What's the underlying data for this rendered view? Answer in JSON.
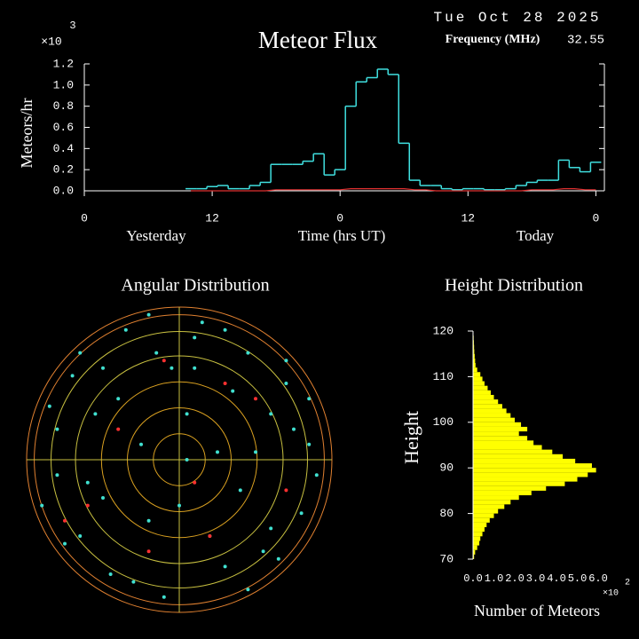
{
  "chart_data": [
    {
      "type": "step",
      "title": "Meteor Flux",
      "date": "Tue Oct 28 2025",
      "frequency_label": "Frequency (MHz)",
      "frequency": 32.55,
      "y_label": "Meteors/hr",
      "y_multiplier": "×10",
      "y_exponent": "3",
      "x_label": "Time (hrs UT)",
      "x_sublabels": [
        "Yesterday",
        "Today"
      ],
      "x": [
        9.5,
        10.5,
        11.5,
        12.5,
        13.5,
        14.5,
        15.5,
        16.5,
        17.5,
        18.5,
        19.5,
        20.5,
        21.5,
        22.5,
        23.5,
        24.5,
        25.5,
        26.5,
        27.5,
        28.5,
        29.5,
        30.5,
        31.5,
        32.5,
        33.5,
        34.5,
        35.5,
        36.5,
        37.5,
        38.5,
        39.5,
        40.5,
        41.5,
        42.5,
        43.5,
        44.5,
        45.5,
        46.5,
        47.5
      ],
      "series": [
        {
          "color": "#40e0e0",
          "values": [
            0.02,
            0.02,
            0.04,
            0.05,
            0.02,
            0.02,
            0.05,
            0.08,
            0.25,
            0.25,
            0.25,
            0.28,
            0.35,
            0.15,
            0.2,
            0.8,
            1.03,
            1.07,
            1.15,
            1.1,
            0.45,
            0.1,
            0.05,
            0.05,
            0.02,
            0.01,
            0.02,
            0.02,
            0.01,
            0.01,
            0.02,
            0.05,
            0.08,
            0.1,
            0.1,
            0.29,
            0.22,
            0.18,
            0.27
          ]
        },
        {
          "color": "#e03030",
          "values": [
            0,
            0,
            0,
            0,
            0,
            0,
            0,
            0,
            0.01,
            0.01,
            0.01,
            0.01,
            0.01,
            0.01,
            0.01,
            0.02,
            0.02,
            0.02,
            0.02,
            0.02,
            0.02,
            0.01,
            0.01,
            0,
            0,
            0,
            0,
            0,
            0,
            0,
            0,
            0,
            0.01,
            0.01,
            0.01,
            0.02,
            0.02,
            0.01,
            0.01
          ]
        }
      ],
      "xlim": [
        0,
        48.8
      ],
      "ylim": [
        0,
        1.2
      ],
      "xticks": [
        0,
        12,
        {
          "value": 24,
          "label": "0"
        },
        {
          "value": 36,
          "label": "12"
        },
        {
          "value": 48,
          "label": "0"
        }
      ],
      "yticks": [
        {
          "value": 0,
          "label": "0.0"
        },
        {
          "value": 0.2,
          "label": "0.2"
        },
        {
          "value": 0.4,
          "label": "0.4"
        },
        {
          "value": 0.6,
          "label": "0.6"
        },
        {
          "value": 0.8,
          "label": "0.8"
        },
        {
          "value": 1.0,
          "label": "1.0"
        },
        {
          "value": 1.2,
          "label": "1.2"
        }
      ]
    },
    {
      "type": "polar-scatter",
      "title": "Angular Distribution",
      "xlim": [
        -1,
        1
      ],
      "ylim": [
        -1,
        1
      ],
      "series": [
        {
          "color": "#40e0d0",
          "x": [
            0.1,
            -0.5,
            0.7,
            -0.8,
            0.3,
            -0.2,
            0.55,
            -0.65,
            0.85,
            -0.35,
            0.05,
            0.45,
            -0.9,
            0.6,
            -0.1,
            0.25,
            -0.7,
            0.8,
            -0.45,
            0.15,
            -0.55,
            0.4,
            -0.25,
            0.9,
            0.35,
            -0.85,
            0.65,
            -0.05,
            0.5,
            -0.6,
            0.2,
            -0.4,
            0.75,
            -0.75,
            0.0,
            0.3,
            -0.3,
            0.6,
            -0.15,
            0.1,
            -0.5,
            0.45,
            0.7,
            -0.8,
            0.05,
            -0.65,
            0.85,
            -0.2
          ],
          "values": [
            0.8,
            0.6,
            0.5,
            0.2,
            -0.7,
            -0.4,
            -0.6,
            -0.5,
            0.1,
            0.85,
            0.3,
            0.7,
            -0.3,
            0.3,
            -0.9,
            0.05,
            0.55,
            -0.35,
            -0.75,
            0.9,
            0.3,
            -0.2,
            0.1,
            -0.1,
            0.45,
            0.35,
            -0.65,
            0.6,
            0.05,
            -0.15,
            -0.5,
            0.4,
            0.2,
            -0.55,
            -0.3,
            0.85,
            -0.8,
            -0.45,
            0.7,
            0.6,
            -0.25,
            -0.85,
            0.65,
            -0.1,
            0.0,
            0.7,
            0.4,
            0.95
          ]
        },
        {
          "color": "#ff3030",
          "x": [
            -0.6,
            0.3,
            -0.2,
            0.7,
            -0.4,
            0.1,
            0.5,
            -0.75,
            0.2,
            -0.1
          ],
          "values": [
            -0.3,
            0.5,
            -0.6,
            -0.2,
            0.2,
            -0.15,
            0.4,
            -0.4,
            -0.5,
            0.65
          ]
        }
      ]
    },
    {
      "type": "histogram",
      "title": "Height Distribution",
      "y_label": "Height",
      "x_label": "Number of Meteors",
      "x_multiplier": "×10",
      "x_exponent": "2",
      "bins": [
        70,
        71,
        72,
        73,
        74,
        75,
        76,
        77,
        78,
        79,
        80,
        81,
        82,
        83,
        84,
        85,
        86,
        87,
        88,
        89,
        90,
        91,
        92,
        93,
        94,
        95,
        96,
        97,
        98,
        99,
        100,
        101,
        102,
        103,
        104,
        105,
        106,
        107,
        108,
        109,
        110,
        111,
        112,
        113,
        114,
        115,
        116,
        117,
        118,
        119,
        120
      ],
      "counts": [
        0.05,
        0.1,
        0.2,
        0.3,
        0.35,
        0.45,
        0.55,
        0.65,
        0.8,
        1.0,
        1.2,
        1.5,
        1.8,
        2.2,
        2.8,
        3.5,
        4.4,
        5.0,
        5.5,
        5.9,
        5.7,
        4.9,
        4.3,
        3.8,
        3.3,
        2.9,
        2.6,
        2.2,
        2.6,
        2.3,
        2.0,
        1.8,
        1.6,
        1.4,
        1.2,
        1.0,
        0.85,
        0.7,
        0.55,
        0.45,
        0.35,
        0.2,
        0.12,
        0.1,
        0.08,
        0.06,
        0.05,
        0.04,
        0.03,
        0.02
      ],
      "color": "#ffff00",
      "ylim": [
        70,
        120
      ],
      "yticks": [
        70,
        80,
        90,
        100,
        110,
        120
      ],
      "xlim": [
        0,
        6
      ],
      "xticks": [
        {
          "value": 0,
          "label": "0.0"
        },
        {
          "value": 1,
          "label": "1.0"
        },
        {
          "value": 2,
          "label": "2.0"
        },
        {
          "value": 3,
          "label": "3.0"
        },
        {
          "value": 4,
          "label": "4.0"
        },
        {
          "value": 5,
          "label": "5.0"
        },
        {
          "value": 6,
          "label": "6.0"
        }
      ]
    }
  ]
}
